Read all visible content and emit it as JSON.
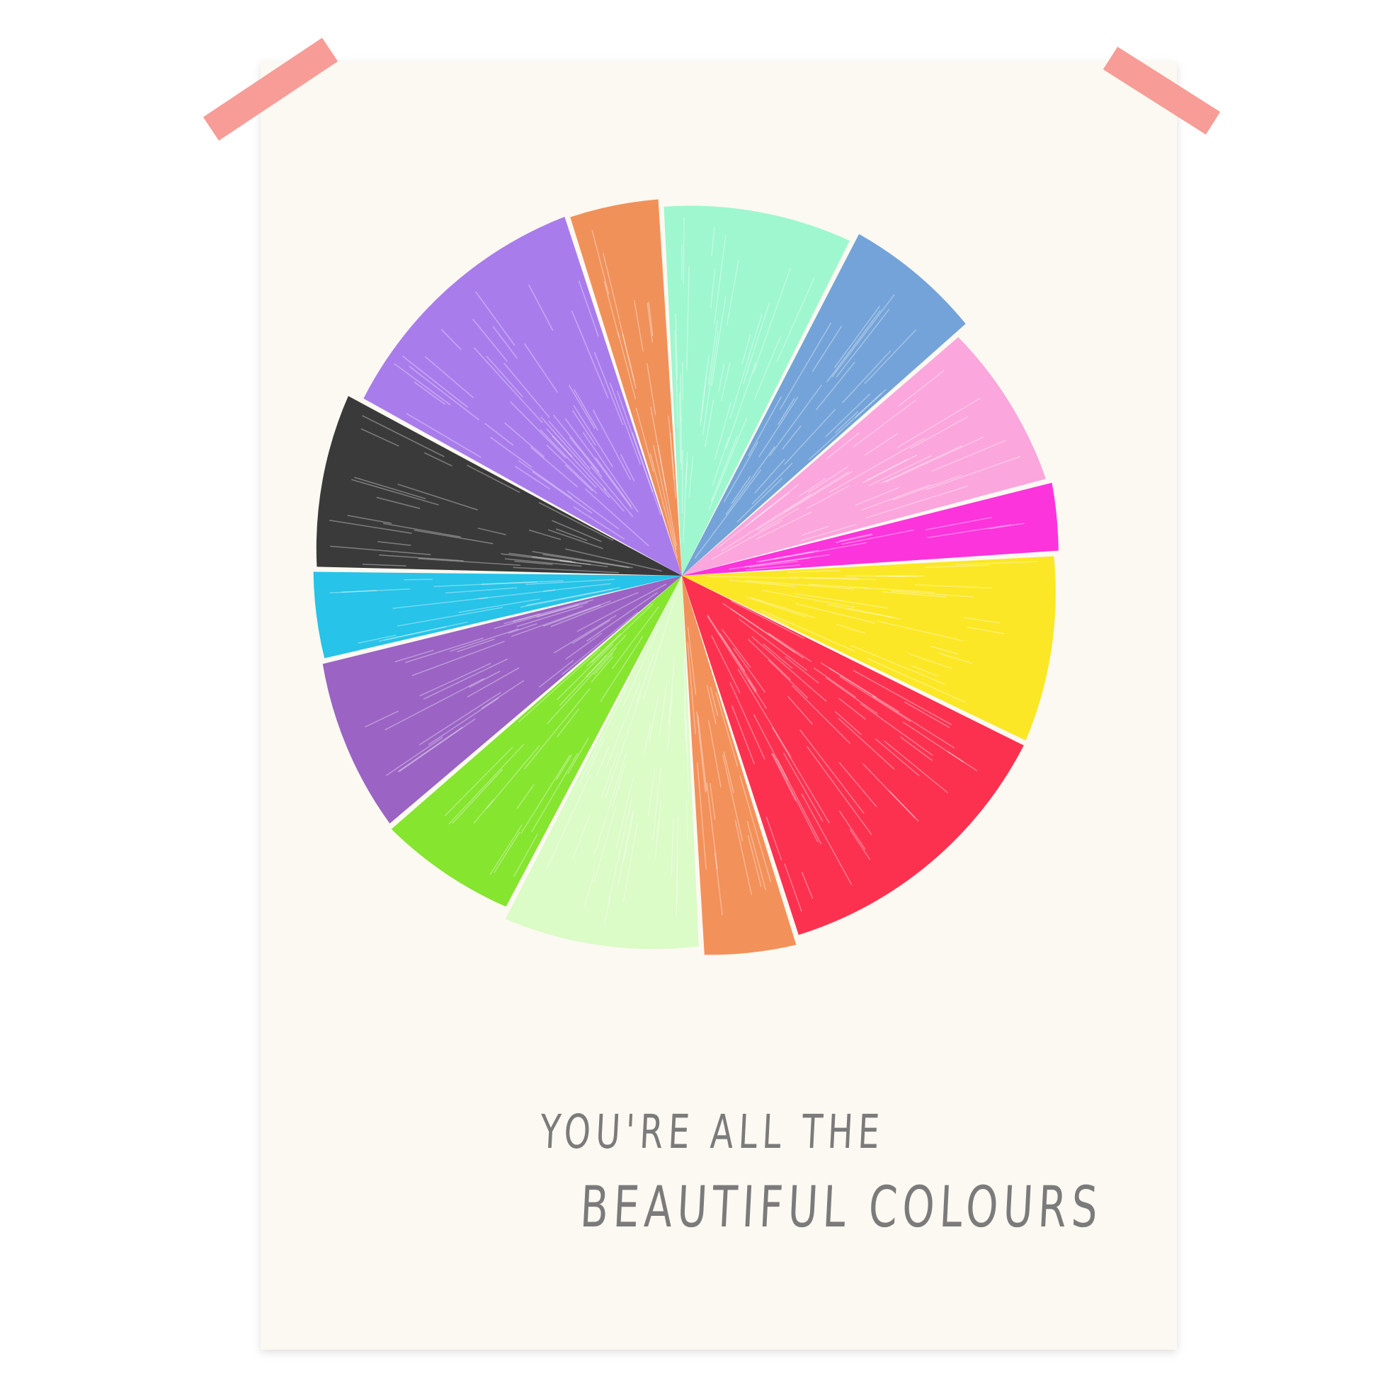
{
  "poster": {
    "paper_color": "#fbf9f1",
    "tape_color": "#f79c96",
    "text_color": "#7b7b7b",
    "caption_line1": "YOU'RE ALL THE",
    "caption_line2": "BEAUTIFUL COLOURS"
  },
  "chart_data": {
    "type": "pie",
    "title": "",
    "unit": "degrees",
    "start_angle": -17.7,
    "slices": [
      {
        "color": "#f0915a",
        "value": 14.5
      },
      {
        "color": "#9ef7cf",
        "value": 30.2
      },
      {
        "color": "#73a3d8",
        "value": 21.8
      },
      {
        "color": "#fba6dc",
        "value": 26.7
      },
      {
        "color": "#fb34dc",
        "value": 11.1
      },
      {
        "color": "#fbe725",
        "value": 29.4
      },
      {
        "color": "#fc3150",
        "value": 46.4
      },
      {
        "color": "#f3915a",
        "value": 14.6
      },
      {
        "color": "#dbfbc7",
        "value": 30.6
      },
      {
        "color": "#85e52f",
        "value": 21.7
      },
      {
        "color": "#9a63c4",
        "value": 27.3
      },
      {
        "color": "#27c3e8",
        "value": 14.4
      },
      {
        "color": "#3a3a3a",
        "value": 27.7
      },
      {
        "color": "#a97cec",
        "value": 43.6
      }
    ]
  }
}
